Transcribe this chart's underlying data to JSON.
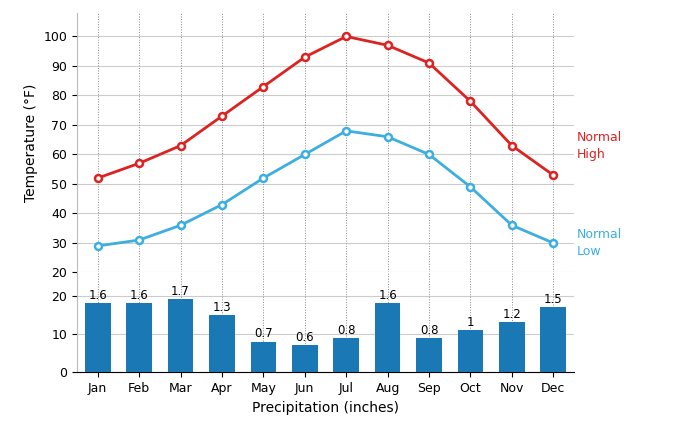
{
  "months": [
    "Jan",
    "Feb",
    "Mar",
    "Apr",
    "May",
    "Jun",
    "Jul",
    "Aug",
    "Sep",
    "Oct",
    "Nov",
    "Dec"
  ],
  "normal_high": [
    52,
    57,
    63,
    73,
    83,
    93,
    100,
    97,
    91,
    78,
    63,
    53
  ],
  "normal_low": [
    29,
    31,
    36,
    43,
    52,
    60,
    68,
    66,
    60,
    49,
    36,
    30
  ],
  "precipitation": [
    1.6,
    1.6,
    1.7,
    1.3,
    0.7,
    0.6,
    0.8,
    1.6,
    0.8,
    1.0,
    1.2,
    1.5
  ],
  "precip_bar_heights": [
    18,
    18,
    19,
    15,
    8,
    7,
    9,
    18,
    9,
    11,
    13,
    17
  ],
  "high_color": "#dd2222",
  "low_color": "#3daee0",
  "bar_color": "#1a78b4",
  "bar_label_color": "#000000",
  "background_color": "#ffffff",
  "ylabel_temp": "Temperature (°F)",
  "xlabel": "Precipitation (inches)",
  "legend_high": "Normal\nHigh",
  "legend_low": "Normal\nLow"
}
